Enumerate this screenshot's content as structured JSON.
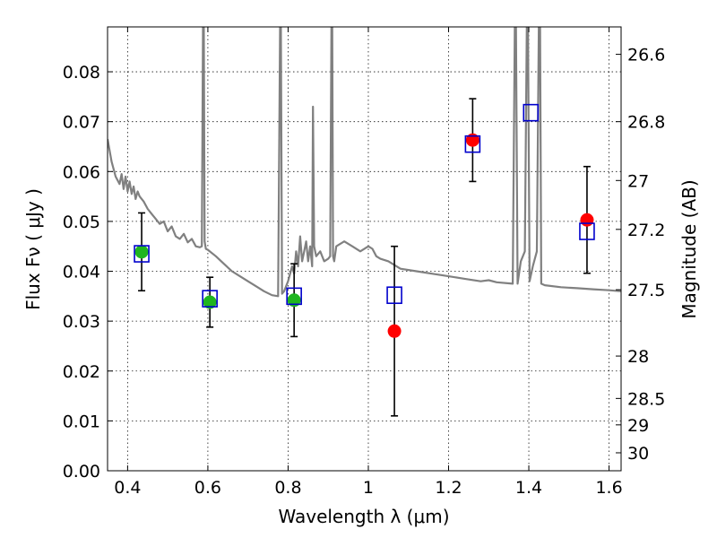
{
  "chart_data": {
    "type": "scatter",
    "title": "",
    "xlabel": "Wavelength  λ (μm)",
    "ylabel": "Flux  Fν  ( μJy )",
    "y2label": "Magnitude (AB)",
    "xlim": [
      0.35,
      1.63
    ],
    "ylim": [
      0.0,
      0.089
    ],
    "grid": true,
    "x_ticks": [
      0.4,
      0.6,
      0.8,
      1.0,
      1.2,
      1.4,
      1.6
    ],
    "x_tick_labels": [
      "0.4",
      "0.6",
      "0.8",
      "1",
      "1.2",
      "1.4",
      "1.6"
    ],
    "y_ticks": [
      0.0,
      0.01,
      0.02,
      0.03,
      0.04,
      0.05,
      0.06,
      0.07,
      0.08
    ],
    "y_tick_labels": [
      "0.00",
      "0.01",
      "0.02",
      "0.03",
      "0.04",
      "0.05",
      "0.06",
      "0.07",
      "0.08"
    ],
    "y2_ticks": [
      {
        "label": "26.6",
        "flux": 0.0835
      },
      {
        "label": "26.8",
        "flux": 0.07
      },
      {
        "label": "27",
        "flux": 0.0582
      },
      {
        "label": "27.2",
        "flux": 0.0484
      },
      {
        "label": "27.5",
        "flux": 0.0363
      },
      {
        "label": "28",
        "flux": 0.023
      },
      {
        "label": "28.5",
        "flux": 0.0145
      },
      {
        "label": "29",
        "flux": 0.0092
      },
      {
        "label": "30",
        "flux": 0.0036
      }
    ],
    "series": [
      {
        "marker": "circle",
        "color": "#1fb51f",
        "x": [
          0.435,
          0.605,
          0.815
        ],
        "y": [
          0.0439,
          0.0338,
          0.0342
        ],
        "yerr": [
          0.0078,
          0.005,
          0.0073
        ]
      },
      {
        "marker": "circle",
        "color": "#ff0000",
        "x": [
          1.065,
          1.26,
          1.545
        ],
        "y": [
          0.028,
          0.0663,
          0.0503
        ],
        "yerr": [
          0.017,
          0.0083,
          0.0107
        ]
      },
      {
        "marker": "open-square",
        "color": "#0000cc",
        "x": [
          0.435,
          0.605,
          0.815,
          1.065,
          1.26,
          1.405,
          1.545
        ],
        "y": [
          0.0435,
          0.0345,
          0.035,
          0.0352,
          0.0655,
          0.0718,
          0.048
        ]
      },
      {
        "type": "line",
        "color": "#808080",
        "x": [
          0.35,
          0.36,
          0.37,
          0.38,
          0.385,
          0.39,
          0.395,
          0.4,
          0.405,
          0.41,
          0.415,
          0.42,
          0.425,
          0.43,
          0.44,
          0.45,
          0.46,
          0.47,
          0.48,
          0.49,
          0.5,
          0.51,
          0.52,
          0.53,
          0.54,
          0.55,
          0.56,
          0.57,
          0.58,
          0.585,
          0.588,
          0.59,
          0.592,
          0.595,
          0.6,
          0.62,
          0.64,
          0.66,
          0.68,
          0.7,
          0.72,
          0.74,
          0.76,
          0.775,
          0.78,
          0.782,
          0.785,
          0.79,
          0.8,
          0.81,
          0.815,
          0.82,
          0.825,
          0.83,
          0.835,
          0.84,
          0.845,
          0.85,
          0.855,
          0.86,
          0.862,
          0.865,
          0.87,
          0.88,
          0.89,
          0.9,
          0.905,
          0.908,
          0.91,
          0.912,
          0.915,
          0.92,
          0.94,
          0.96,
          0.98,
          1.0,
          1.01,
          1.02,
          1.03,
          1.05,
          1.08,
          1.12,
          1.16,
          1.2,
          1.24,
          1.28,
          1.3,
          1.32,
          1.36,
          1.365,
          1.368,
          1.372,
          1.38,
          1.39,
          1.395,
          1.398,
          1.402,
          1.41,
          1.42,
          1.425,
          1.428,
          1.431,
          1.44,
          1.48,
          1.52,
          1.56,
          1.6,
          1.63
        ],
        "y": [
          0.0665,
          0.062,
          0.059,
          0.0575,
          0.0595,
          0.0565,
          0.059,
          0.056,
          0.058,
          0.0555,
          0.057,
          0.0545,
          0.056,
          0.055,
          0.054,
          0.0525,
          0.0515,
          0.0505,
          0.0495,
          0.05,
          0.048,
          0.049,
          0.047,
          0.0465,
          0.0475,
          0.0458,
          0.0465,
          0.045,
          0.0448,
          0.045,
          0.089,
          0.089,
          0.046,
          0.0445,
          0.0443,
          0.043,
          0.0415,
          0.04,
          0.039,
          0.038,
          0.037,
          0.036,
          0.0352,
          0.035,
          0.089,
          0.089,
          0.0355,
          0.036,
          0.038,
          0.041,
          0.0395,
          0.044,
          0.041,
          0.047,
          0.042,
          0.044,
          0.046,
          0.042,
          0.045,
          0.041,
          0.073,
          0.045,
          0.043,
          0.044,
          0.042,
          0.0425,
          0.043,
          0.089,
          0.089,
          0.043,
          0.042,
          0.045,
          0.046,
          0.045,
          0.044,
          0.045,
          0.0445,
          0.043,
          0.0425,
          0.042,
          0.0405,
          0.04,
          0.0395,
          0.039,
          0.0385,
          0.038,
          0.0382,
          0.0378,
          0.0375,
          0.089,
          0.089,
          0.0375,
          0.042,
          0.044,
          0.089,
          0.089,
          0.038,
          0.041,
          0.044,
          0.089,
          0.089,
          0.0375,
          0.0372,
          0.0368,
          0.0366,
          0.0364,
          0.0362,
          0.036
        ]
      }
    ]
  }
}
